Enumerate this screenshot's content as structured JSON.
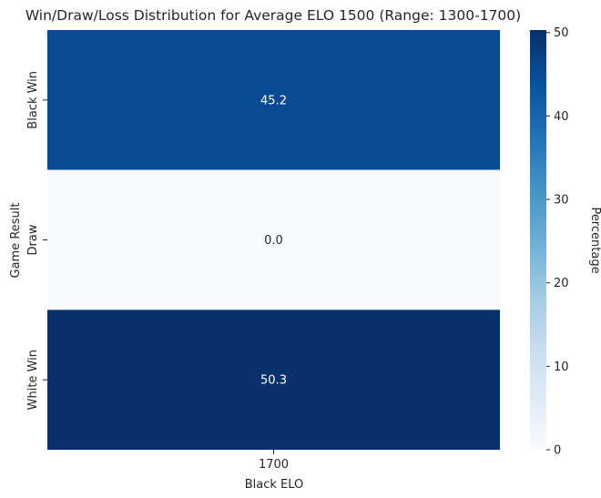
{
  "chart_data": {
    "type": "heatmap",
    "title": "Win/Draw/Loss Distribution for Average ELO 1500 (Range: 1300-1700)",
    "xlabel": "Black ELO",
    "ylabel": "Game Result",
    "x_categories": [
      "1700"
    ],
    "y_categories": [
      "Black Win",
      "Draw",
      "White Win"
    ],
    "values": [
      [
        45.2
      ],
      [
        0.0
      ],
      [
        50.3
      ]
    ],
    "cell_labels": [
      [
        "45.2"
      ],
      [
        "0.0"
      ],
      [
        "50.3"
      ]
    ],
    "colormap": "Blues",
    "colorbar": {
      "label": "Percentage",
      "range": [
        0,
        50.3
      ],
      "ticks": [
        0,
        10,
        20,
        30,
        40,
        50
      ],
      "tick_labels": [
        "0",
        "10",
        "20",
        "30",
        "40",
        "50"
      ]
    },
    "colors": {
      "low": "#f7fbff",
      "high": "#08306b",
      "text_dark": "#262626",
      "text_light": "#ffffff"
    }
  }
}
